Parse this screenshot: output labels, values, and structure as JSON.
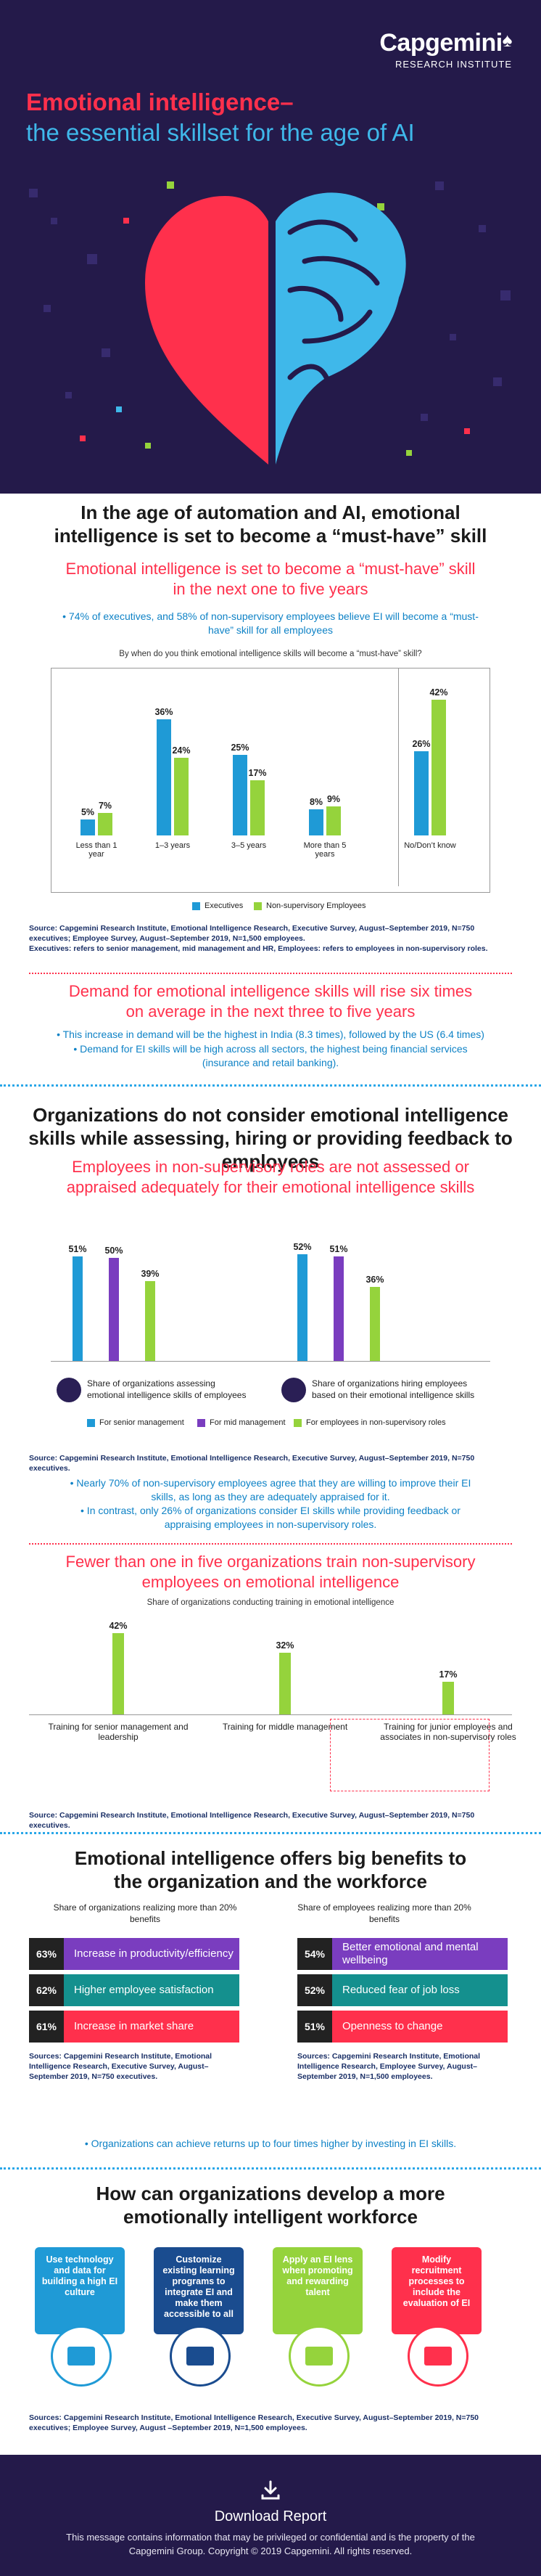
{
  "header": {
    "brand": "Capgemini",
    "brand_sub": "RESEARCH INSTITUTE",
    "title_line1": "Emotional intelligence–",
    "title_line2": "the essential skillset for the age of AI"
  },
  "section1": {
    "heading": "In the age of automation and AI, emotional intelligence is set to become a “must-have” skill",
    "subheading": "Emotional intelligence is set to become a “must-have” skill in the next one to five years",
    "bullet": "• 74% of executives, and 58% of non-supervisory employees believe EI will become a “must-have” skill for all employees",
    "chart_title": "By when do you think emotional intelligence skills will become a “must-have” skill?",
    "source": "Source: Capgemini Research Institute, Emotional Intelligence Research, Executive Survey, August–September 2019, N=750 executives; Employee Survey, August–September 2019, N=1,500 employees.",
    "source2": "Executives: refers to senior management, mid management and HR, Employees: refers to employees in non-supervisory roles."
  },
  "chart1": {
    "type": "bar",
    "categories": [
      "Less than 1 year",
      "1–3 years",
      "3–5 years",
      "More than 5 years",
      "No/Don’t know"
    ],
    "series": [
      {
        "name": "Executives",
        "values": [
          5,
          36,
          25,
          8,
          26
        ]
      },
      {
        "name": "Non-supervisory Employees",
        "values": [
          7,
          24,
          17,
          9,
          42
        ]
      }
    ],
    "value_labels": [
      [
        "5%",
        "36%",
        "25%",
        "8%",
        "26%"
      ],
      [
        "7%",
        "24%",
        "17%",
        "9%",
        "42%"
      ]
    ],
    "ylim": [
      0,
      45
    ],
    "legend": "bottom"
  },
  "demand": {
    "heading": "Demand for emotional intelligence skills will rise six times on average in the next three to five years",
    "bullet1": "• This increase in demand will be the highest in India (8.3 times), followed by the US (6.4 times)",
    "bullet2": "• Demand for EI skills will be high across all sectors, the highest being financial services (insurance and retail banking)."
  },
  "section2": {
    "heading": "Organizations do not consider emotional intelligence skills while assessing, hiring or providing feedback to employees",
    "subheading": "Employees in non-supervisory roles are not assessed or appraised adequately for their emotional intelligence skills",
    "group1_label": "Share of organizations assessing emotional intelligence skills of employees",
    "group2_label": "Share of organizations hiring employees based on their emotional intelligence skills",
    "source": "Source: Capgemini Research Institute, Emotional Intelligence Research, Executive Survey, August–September 2019, N=750 executives.",
    "bullet1": "• Nearly 70% of non-supervisory employees agree that they are willing to improve their EI skills, as long as they are adequately appraised for it.",
    "bullet2": "• In contrast, only 26% of organizations consider EI skills while providing feedback or appraising employees in non-supervisory roles."
  },
  "chart2": {
    "type": "bar",
    "categories": [
      "Share of organizations assessing emotional intelligence skills of employees",
      "Share of organizations hiring employees based on their emotional intelligence skills"
    ],
    "series": [
      {
        "name": "For senior management",
        "values": [
          51,
          52
        ]
      },
      {
        "name": "For mid management",
        "values": [
          50,
          51
        ]
      },
      {
        "name": "For employees in non-supervisory roles",
        "values": [
          39,
          36
        ]
      }
    ],
    "value_labels": [
      [
        "51%",
        "52%"
      ],
      [
        "50%",
        "51%"
      ],
      [
        "39%",
        "36%"
      ]
    ],
    "ylim": [
      0,
      60
    ],
    "legend": "bottom"
  },
  "section3": {
    "heading": "Fewer than one in five organizations train non-supervisory employees on emotional intelligence",
    "chart_title": "Share of organizations conducting training in emotional intelligence",
    "source": "Source: Capgemini Research Institute, Emotional Intelligence Research, Executive Survey, August–September 2019, N=750 executives."
  },
  "chart3": {
    "type": "bar",
    "categories": [
      "Training for senior management and leadership",
      "Training for middle management",
      "Training for junior employees and associates in non-supervisory roles"
    ],
    "values": [
      42,
      32,
      17
    ],
    "value_labels": [
      "42%",
      "32%",
      "17%"
    ],
    "ylim": [
      0,
      45
    ]
  },
  "section4": {
    "heading": "Emotional intelligence offers big benefits to the organization and the workforce",
    "left_title": "Share of organizations realizing more than 20% benefits",
    "right_title": "Share of employees realizing more than 20% benefits",
    "left_items": [
      {
        "pct": "63%",
        "label": "Increase in productivity/efficiency",
        "color": "#7a3dbf"
      },
      {
        "pct": "62%",
        "label": "Higher employee satisfaction",
        "color": "#14908e"
      },
      {
        "pct": "61%",
        "label": "Increase in market share",
        "color": "#ff304c"
      }
    ],
    "right_items": [
      {
        "pct": "54%",
        "label": "Better emotional and mental wellbeing",
        "color": "#7a3dbf"
      },
      {
        "pct": "52%",
        "label": "Reduced fear of job loss",
        "color": "#14908e"
      },
      {
        "pct": "51%",
        "label": "Openness to change",
        "color": "#ff304c"
      }
    ],
    "left_source": "Sources: Capgemini Research Institute, Emotional Intelligence Research, Executive Survey, August–September 2019, N=750 executives.",
    "right_source": "Sources: Capgemini Research Institute, Emotional Intelligence Research, Employee Survey, August–September 2019, N=1,500 employees.",
    "bullet": "• Organizations can achieve returns up to four times higher by investing in EI skills."
  },
  "section5": {
    "heading": "How can organizations develop a more emotionally intelligent workforce",
    "cards": [
      {
        "label": "Use technology and data for building a high EI culture",
        "color": "#1f9ad6",
        "icon": "laptop-icon"
      },
      {
        "label": "Customize existing learning programs to integrate EI and make them accessible to all",
        "color": "#1a4c8f",
        "icon": "board-icon"
      },
      {
        "label": "Apply an EI lens when promoting and rewarding talent",
        "color": "#95d33c",
        "icon": "trophy-icon"
      },
      {
        "label": "Modify recruitment processes to include the evaluation of EI",
        "color": "#ff304c",
        "icon": "interview-icon"
      }
    ],
    "source": "Sources: Capgemini Research Institute, Emotional Intelligence Research, Executive Survey, August–September 2019, N=750 executives; Employee Survey, August –September 2019, N=1,500 employees."
  },
  "footer": {
    "download_label": "Download Report",
    "message": "This message contains information that may be privileged or confidential and is the property of the Capgemini Group. Copyright © 2019 Capgemini. All rights reserved."
  }
}
